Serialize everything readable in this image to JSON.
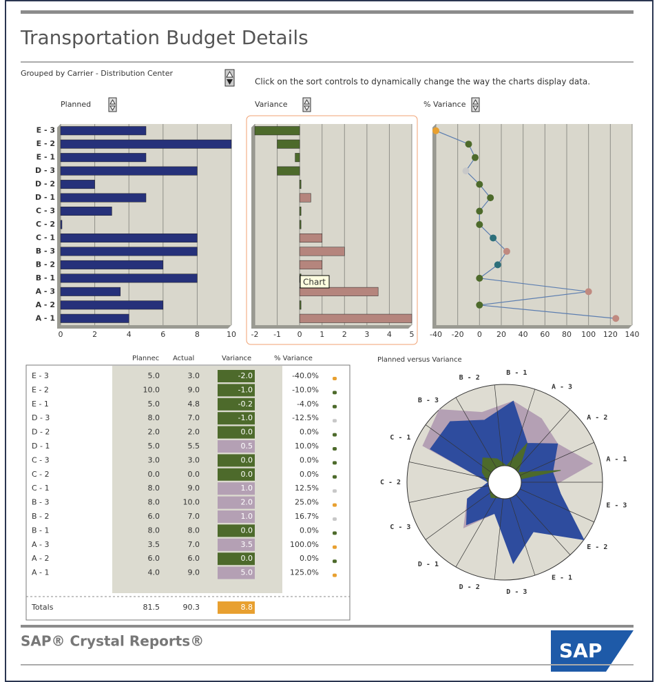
{
  "header": {
    "title": "Transportation Budget Details",
    "grouping": "Grouped by Carrier - Distribution Center",
    "instruction": "Click on the sort controls to dynamically change the way the charts display data."
  },
  "chart_data": [
    {
      "type": "hbar",
      "title": "Planned",
      "categories": [
        "E - 3",
        "E - 2",
        "E - 1",
        "D - 3",
        "D - 2",
        "D - 1",
        "C - 3",
        "C - 2",
        "C - 1",
        "B - 3",
        "B - 2",
        "B - 1",
        "A - 3",
        "A - 2",
        "A - 1"
      ],
      "values": [
        5,
        10,
        5,
        8,
        2,
        5,
        3,
        0,
        8,
        8,
        6,
        8,
        3.5,
        6,
        4
      ],
      "color": "#26317a",
      "xlim": [
        0,
        10
      ],
      "xticks": [
        0,
        2,
        4,
        6,
        8,
        10
      ]
    },
    {
      "type": "hbar",
      "title": "Variance",
      "categories": [
        "E - 3",
        "E - 2",
        "E - 1",
        "D - 3",
        "D - 2",
        "D - 1",
        "C - 3",
        "C - 2",
        "C - 1",
        "B - 3",
        "B - 2",
        "B - 1",
        "A - 3",
        "A - 2",
        "A - 1"
      ],
      "values": [
        -2,
        -1,
        -0.2,
        -1,
        0,
        0.5,
        0,
        0,
        1,
        2,
        1,
        0,
        3.5,
        0,
        5
      ],
      "colors": [
        "#4d6a2b",
        "#4d6a2b",
        "#4d6a2b",
        "#4d6a2b",
        "#4d6a2b",
        "#b5857d",
        "#4d6a2b",
        "#4d6a2b",
        "#b5857d",
        "#b5857d",
        "#b5857d",
        "#4d6a2b",
        "#b5857d",
        "#4d6a2b",
        "#b5857d"
      ],
      "xlim": [
        -2,
        5
      ],
      "xticks": [
        -2,
        -1,
        0,
        1,
        2,
        3,
        4,
        5
      ],
      "annotation": "Chart"
    },
    {
      "type": "dotline",
      "title": "% Variance",
      "categories": [
        "E - 3",
        "E - 2",
        "E - 1",
        "D - 3",
        "D - 2",
        "D - 1",
        "C - 3",
        "C - 2",
        "C - 1",
        "B - 3",
        "B - 2",
        "B - 1",
        "A - 3",
        "A - 2",
        "A - 1"
      ],
      "values": [
        -40,
        -10,
        -4,
        -12.5,
        0,
        10,
        0,
        0,
        12.5,
        25,
        16.7,
        0,
        100,
        0,
        125
      ],
      "point_colors": [
        "#e8a030",
        "#4d6a2b",
        "#4d6a2b",
        "#c8c8c8",
        "#4d6a2b",
        "#4d6a2b",
        "#4d6a2b",
        "#4d6a2b",
        "#2d6f7a",
        "#c08a80",
        "#2d6f7a",
        "#4d6a2b",
        "#c08a80",
        "#4d6a2b",
        "#c08a80"
      ],
      "color": "#5b7db0",
      "xlim": [
        -40,
        140
      ],
      "xticks": [
        -40,
        -20,
        0,
        20,
        40,
        60,
        80,
        100,
        120,
        140
      ]
    },
    {
      "type": "radar",
      "title": "Planned versus Variance",
      "categories": [
        "A - 1",
        "A - 2",
        "A - 3",
        "B - 1",
        "B - 2",
        "B - 3",
        "C - 1",
        "C - 2",
        "C - 3",
        "D - 1",
        "D - 2",
        "D - 3",
        "E - 1",
        "E - 2",
        "E - 3"
      ],
      "series": [
        {
          "color": "#b4a0b4",
          "values": [
            9,
            6,
            7,
            8,
            7,
            10,
            9,
            0,
            3,
            5.5,
            2,
            7,
            4.8,
            9,
            3
          ]
        },
        {
          "color": "#2e4c9e",
          "values": [
            4,
            6,
            3.5,
            8,
            6,
            8,
            8,
            0,
            3,
            5,
            2,
            8,
            5,
            10,
            5
          ]
        },
        {
          "color": "#4d6a2b",
          "values": [
            5,
            0,
            3.5,
            0,
            1,
            2,
            1,
            0,
            0,
            0.5,
            0,
            -1,
            -0.2,
            -1,
            -2
          ]
        }
      ],
      "rlim": [
        0,
        10
      ]
    }
  ],
  "table": {
    "columns": [
      "Plannec",
      "Actual",
      "Variance",
      "% Variance"
    ],
    "rows": [
      [
        "E - 3",
        "5.0",
        "3.0",
        "-2.0",
        "-40.0%"
      ],
      [
        "E - 2",
        "10.0",
        "9.0",
        "-1.0",
        "-10.0%"
      ],
      [
        "E - 1",
        "5.0",
        "4.8",
        "-0.2",
        "-4.0%"
      ],
      [
        "D - 3",
        "8.0",
        "7.0",
        "-1.0",
        "-12.5%"
      ],
      [
        "D - 2",
        "2.0",
        "2.0",
        "0.0",
        "0.0%"
      ],
      [
        "D - 1",
        "5.0",
        "5.5",
        "0.5",
        "10.0%"
      ],
      [
        "C - 3",
        "3.0",
        "3.0",
        "0.0",
        "0.0%"
      ],
      [
        "C - 2",
        "0.0",
        "0.0",
        "0.0",
        "0.0%"
      ],
      [
        "C - 1",
        "8.0",
        "9.0",
        "1.0",
        "12.5%"
      ],
      [
        "B - 3",
        "8.0",
        "10.0",
        "2.0",
        "25.0%"
      ],
      [
        "B - 2",
        "6.0",
        "7.0",
        "1.0",
        "16.7%"
      ],
      [
        "B - 1",
        "8.0",
        "8.0",
        "0.0",
        "0.0%"
      ],
      [
        "A - 3",
        "3.5",
        "7.0",
        "3.5",
        "100.0%"
      ],
      [
        "A - 2",
        "6.0",
        "6.0",
        "0.0",
        "0.0%"
      ],
      [
        "A - 1",
        "4.0",
        "9.0",
        "5.0",
        "125.0%"
      ]
    ],
    "cell_colors": [
      "#4d6a2b",
      "#4d6a2b",
      "#4d6a2b",
      "#4d6a2b",
      "#4d6a2b",
      "#b4a0b4",
      "#4d6a2b",
      "#4d6a2b",
      "#b4a0b4",
      "#b4a0b4",
      "#b4a0b4",
      "#4d6a2b",
      "#b4a0b4",
      "#4d6a2b",
      "#b4a0b4"
    ],
    "status_colors": [
      "#e8a030",
      "#4d6a2b",
      "#4d6a2b",
      "#c8c8c8",
      "#4d6a2b",
      "#4d6a2b",
      "#4d6a2b",
      "#4d6a2b",
      "#c8c8c8",
      "#e8a030",
      "#c8c8c8",
      "#4d6a2b",
      "#e8a030",
      "#4d6a2b",
      "#e8a030"
    ],
    "totals": {
      "label": "Totals",
      "values": [
        "81.5",
        "90.3",
        "8.8"
      ],
      "color": "#e8a030"
    }
  },
  "footer": {
    "brand": "SAP® Crystal Reports®",
    "logo": "SAP"
  }
}
